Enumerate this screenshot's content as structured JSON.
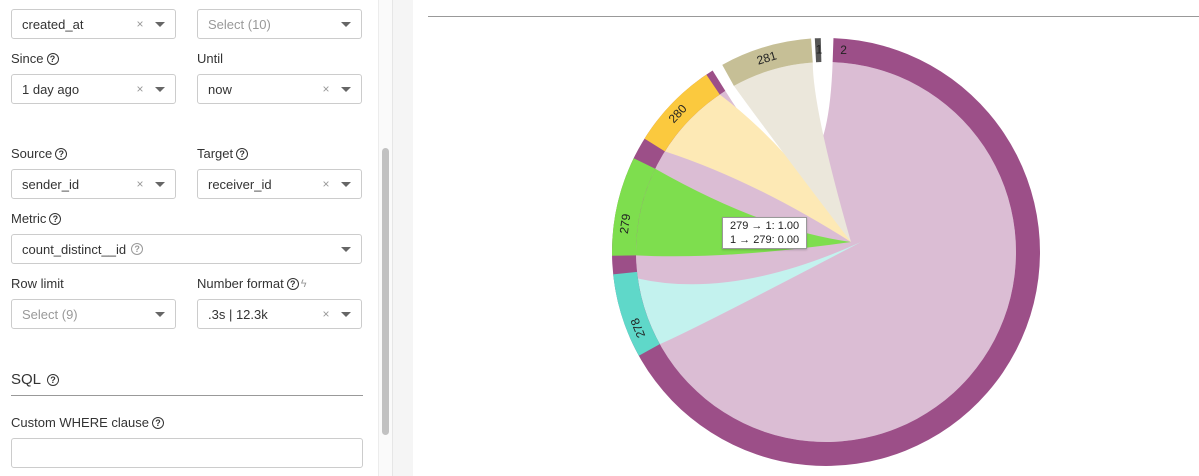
{
  "controls": {
    "top_left_select": {
      "value": "created_at"
    },
    "top_right_select": {
      "placeholder": "Select (10)"
    },
    "since": {
      "label": "Since",
      "value": "1 day ago"
    },
    "until": {
      "label": "Until",
      "value": "now"
    },
    "source": {
      "label": "Source",
      "value": "sender_id"
    },
    "target": {
      "label": "Target",
      "value": "receiver_id"
    },
    "metric": {
      "label": "Metric",
      "value": "count_distinct__id"
    },
    "row_limit": {
      "label": "Row limit",
      "placeholder": "Select (9)"
    },
    "number_format": {
      "label": "Number format",
      "value": ".3s | 12.3k"
    },
    "clear_symbol": "×"
  },
  "sql_section": {
    "title": "SQL",
    "where_label": "Custom WHERE clause",
    "where_value": ""
  },
  "icons": {
    "help": "?",
    "bolt": "ϟ"
  },
  "chart_data": {
    "type": "chord",
    "groups": [
      {
        "name": "2",
        "color": "#9c4f88",
        "ribbon_color": "#dbbdd4"
      },
      {
        "name": "278",
        "color": "#5fd8c9",
        "ribbon_color": "#c3f2ee"
      },
      {
        "name": "279",
        "color": "#7ede4e",
        "ribbon_color": "#7ede4e"
      },
      {
        "name": "280",
        "color": "#fbc93e",
        "ribbon_color": "#fde9b5"
      },
      {
        "name": "281",
        "color": "#c6bf96",
        "ribbon_color": "#ebe7db"
      },
      {
        "name": "1",
        "color": "#555555",
        "ribbon_color": "#555555"
      }
    ],
    "tooltip": {
      "line1": "279 → 1: 1.00",
      "line2": "1 → 279: 0.00"
    }
  }
}
